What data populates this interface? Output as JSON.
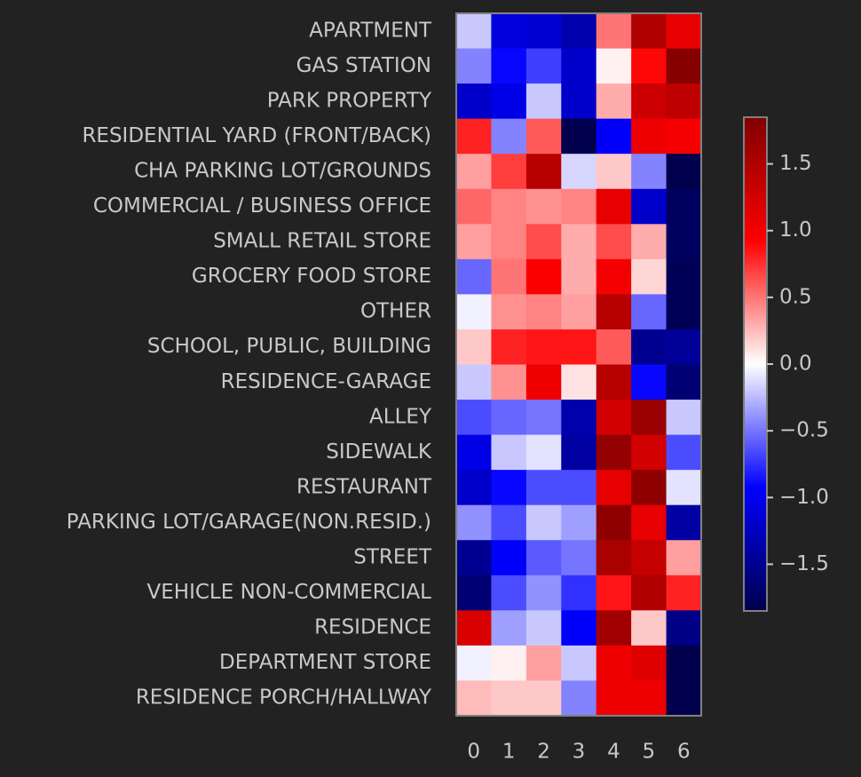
{
  "chart_data": {
    "type": "heatmap",
    "colormap": "seismic",
    "vmin": -1.85,
    "vmax": 1.85,
    "colors": {
      "background": "#222222",
      "text": "#c8c8c8",
      "frame": "#808080"
    },
    "rows": [
      "APARTMENT",
      "GAS STATION",
      "PARK PROPERTY",
      "RESIDENTIAL YARD (FRONT/BACK)",
      "CHA PARKING LOT/GROUNDS",
      "COMMERCIAL / BUSINESS OFFICE",
      "SMALL RETAIL STORE",
      "GROCERY FOOD STORE",
      "OTHER",
      "SCHOOL, PUBLIC, BUILDING",
      "RESIDENCE-GARAGE",
      "ALLEY",
      "SIDEWALK",
      "RESTAURANT",
      "PARKING LOT/GARAGE(NON.RESID.)",
      "STREET",
      "VEHICLE NON-COMMERCIAL",
      "RESIDENCE",
      "DEPARTMENT STORE",
      "RESIDENCE PORCH/HALLWAY"
    ],
    "columns": [
      "0",
      "1",
      "2",
      "3",
      "4",
      "5",
      "6"
    ],
    "values": [
      [
        -0.2,
        -1.1,
        -1.15,
        -1.35,
        0.5,
        1.5,
        1.1
      ],
      [
        -0.45,
        -0.9,
        -0.7,
        -1.2,
        0.05,
        0.9,
        1.8
      ],
      [
        -1.2,
        -1.05,
        -0.2,
        -1.2,
        0.3,
        1.3,
        1.4
      ],
      [
        0.8,
        -0.45,
        0.6,
        -1.85,
        -0.95,
        1.05,
        1.0
      ],
      [
        0.35,
        0.7,
        1.45,
        -0.15,
        0.2,
        -0.45,
        -1.85
      ],
      [
        0.55,
        0.45,
        0.4,
        0.45,
        1.1,
        -1.2,
        -1.75
      ],
      [
        0.35,
        0.45,
        0.65,
        0.3,
        0.65,
        0.3,
        -1.75
      ],
      [
        -0.55,
        0.5,
        0.95,
        0.3,
        1.0,
        0.15,
        -1.8
      ],
      [
        -0.05,
        0.4,
        0.45,
        0.35,
        1.45,
        -0.55,
        -1.8
      ],
      [
        0.2,
        0.8,
        0.85,
        0.85,
        0.6,
        -1.5,
        -1.45
      ],
      [
        -0.2,
        0.4,
        1.05,
        0.1,
        1.45,
        -0.9,
        -1.65
      ],
      [
        -0.65,
        -0.55,
        -0.5,
        -1.35,
        1.25,
        1.65,
        -0.2
      ],
      [
        -1.05,
        -0.2,
        -0.1,
        -1.4,
        1.7,
        1.25,
        -0.65
      ],
      [
        -1.2,
        -0.9,
        -0.65,
        -0.65,
        1.1,
        1.75,
        -0.1
      ],
      [
        -0.4,
        -0.65,
        -0.2,
        -0.35,
        1.75,
        1.1,
        -1.4
      ],
      [
        -1.5,
        -0.95,
        -0.6,
        -0.5,
        1.55,
        1.35,
        0.35
      ],
      [
        -1.65,
        -0.65,
        -0.4,
        -0.75,
        0.85,
        1.5,
        0.8
      ],
      [
        1.2,
        -0.35,
        -0.2,
        -0.95,
        1.6,
        0.2,
        -1.55
      ],
      [
        -0.05,
        0.05,
        0.35,
        -0.2,
        1.05,
        1.15,
        -1.85
      ],
      [
        0.25,
        0.2,
        0.2,
        -0.45,
        1.05,
        1.05,
        -1.85
      ]
    ],
    "colorbar": {
      "ticks": [
        1.5,
        1.0,
        0.5,
        0.0,
        -0.5,
        -1.0,
        -1.5
      ],
      "tick_labels": [
        "1.5",
        "1.0",
        "0.5",
        "0.0",
        "−0.5",
        "−1.0",
        "−1.5"
      ]
    }
  }
}
